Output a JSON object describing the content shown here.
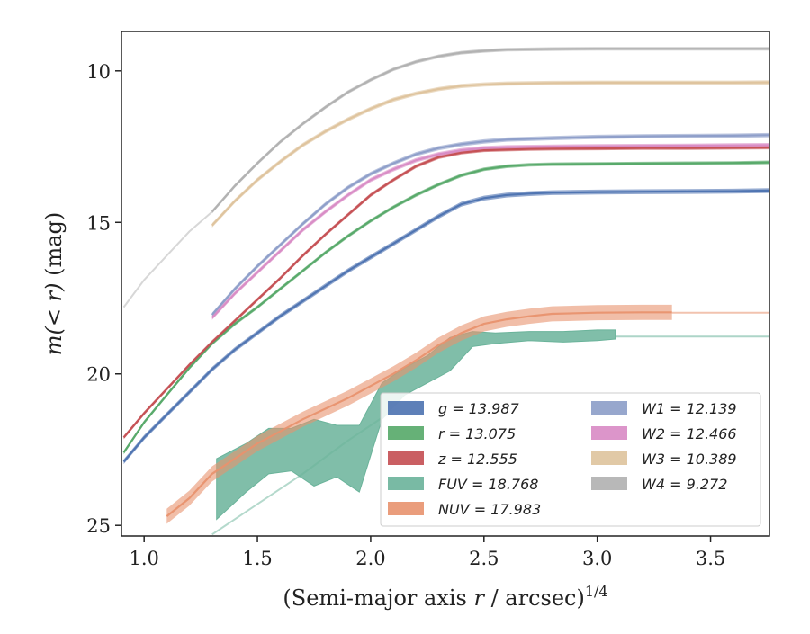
{
  "chart_data": {
    "type": "line",
    "xlabel": "(Semi-major axis r / arcsec)^1/4",
    "ylabel": "m(< r) (mag)",
    "xlim": [
      0.9,
      3.76
    ],
    "ylim": [
      25.35,
      8.7
    ],
    "y_inverted": true,
    "xticks": [
      "1.0",
      "1.5",
      "2.0",
      "2.5",
      "3.0",
      "3.5"
    ],
    "yticks": [
      "10",
      "15",
      "20",
      "25"
    ],
    "grid": false,
    "legend_position": "lower-right",
    "legend_columns": 2,
    "series": [
      {
        "name": "g = 13.987",
        "color": "#4c72b0",
        "band": 0.08,
        "x": [
          0.91,
          1.0,
          1.1,
          1.2,
          1.3,
          1.4,
          1.5,
          1.6,
          1.7,
          1.8,
          1.9,
          2.0,
          2.1,
          2.2,
          2.3,
          2.4,
          2.5,
          2.6,
          2.7,
          2.8,
          3.0,
          3.2,
          3.4,
          3.6,
          3.76
        ],
        "y": [
          22.9,
          22.1,
          21.35,
          20.6,
          19.85,
          19.2,
          18.65,
          18.1,
          17.6,
          17.1,
          16.6,
          16.15,
          15.7,
          15.25,
          14.8,
          14.4,
          14.2,
          14.1,
          14.05,
          14.02,
          14.0,
          13.99,
          13.98,
          13.97,
          13.95
        ]
      },
      {
        "name": "r = 13.075",
        "color": "#55a868",
        "band": 0.06,
        "x": [
          0.91,
          1.0,
          1.1,
          1.2,
          1.3,
          1.4,
          1.5,
          1.6,
          1.7,
          1.8,
          1.9,
          2.0,
          2.1,
          2.2,
          2.3,
          2.4,
          2.5,
          2.6,
          2.7,
          2.8,
          3.0,
          3.2,
          3.4,
          3.6,
          3.76
        ],
        "y": [
          22.6,
          21.6,
          20.7,
          19.8,
          19.0,
          18.35,
          17.8,
          17.2,
          16.6,
          16.0,
          15.45,
          14.95,
          14.5,
          14.1,
          13.75,
          13.45,
          13.25,
          13.15,
          13.1,
          13.08,
          13.07,
          13.06,
          13.05,
          13.04,
          13.02
        ]
      },
      {
        "name": "z = 12.555",
        "color": "#c44e52",
        "band": 0.06,
        "x": [
          0.91,
          1.0,
          1.1,
          1.2,
          1.3,
          1.4,
          1.5,
          1.6,
          1.7,
          1.8,
          1.9,
          2.0,
          2.1,
          2.2,
          2.3,
          2.4,
          2.5,
          2.6,
          2.7,
          2.8,
          3.0,
          3.2,
          3.4,
          3.6,
          3.76
        ],
        "y": [
          22.1,
          21.3,
          20.5,
          19.7,
          18.95,
          18.25,
          17.55,
          16.85,
          16.1,
          15.4,
          14.75,
          14.1,
          13.6,
          13.15,
          12.85,
          12.7,
          12.62,
          12.6,
          12.58,
          12.57,
          12.56,
          12.55,
          12.55,
          12.54,
          12.53
        ]
      },
      {
        "name": "FUV = 18.768",
        "color": "#6ab39a",
        "band": 0,
        "x": [
          1.32,
          1.45,
          1.55,
          1.65,
          1.75,
          1.85,
          1.95,
          2.05,
          2.15,
          2.25,
          2.35,
          2.45,
          2.55,
          2.7,
          2.85,
          3.0,
          3.08
        ],
        "y_low": [
          24.8,
          23.9,
          23.3,
          23.2,
          23.7,
          23.4,
          23.9,
          21.5,
          20.7,
          20.3,
          19.9,
          19.1,
          19.0,
          18.9,
          18.95,
          18.9,
          18.85
        ],
        "y_high": [
          22.8,
          22.3,
          21.8,
          21.8,
          21.5,
          21.7,
          21.7,
          20.3,
          19.8,
          19.4,
          18.8,
          18.6,
          18.65,
          18.6,
          18.6,
          18.55,
          18.55
        ],
        "extension_x": [
          3.08,
          3.76
        ],
        "extension_y": [
          18.77,
          18.77
        ],
        "faint_x": [
          1.3,
          1.5,
          1.7,
          1.9,
          2.1,
          2.2
        ],
        "faint_y": [
          25.3,
          24.3,
          23.3,
          22.2,
          21.2,
          20.9
        ]
      },
      {
        "name": "NUV = 17.983",
        "color": "#e8926e",
        "band": 0.25,
        "x": [
          1.1,
          1.2,
          1.3,
          1.4,
          1.5,
          1.6,
          1.7,
          1.8,
          1.9,
          2.0,
          2.1,
          2.2,
          2.3,
          2.4,
          2.5,
          2.6,
          2.7,
          2.8,
          3.0,
          3.2,
          3.33
        ],
        "y": [
          24.7,
          24.1,
          23.3,
          22.8,
          22.3,
          21.9,
          21.5,
          21.15,
          20.8,
          20.4,
          20.0,
          19.55,
          19.05,
          18.65,
          18.35,
          18.2,
          18.1,
          18.02,
          17.98,
          17.97,
          17.97
        ],
        "extension_x": [
          3.33,
          3.76
        ],
        "extension_y": [
          17.98,
          17.98
        ]
      },
      {
        "name": "W1 = 12.139",
        "color": "#8c9dc8",
        "band": 0.07,
        "x": [
          1.3,
          1.4,
          1.5,
          1.6,
          1.7,
          1.8,
          1.9,
          2.0,
          2.1,
          2.2,
          2.3,
          2.4,
          2.5,
          2.6,
          2.8,
          3.0,
          3.2,
          3.4,
          3.6,
          3.76
        ],
        "y": [
          18.05,
          17.2,
          16.45,
          15.75,
          15.05,
          14.4,
          13.85,
          13.4,
          13.05,
          12.75,
          12.55,
          12.42,
          12.33,
          12.27,
          12.22,
          12.18,
          12.16,
          12.15,
          12.14,
          12.12
        ]
      },
      {
        "name": "W2 = 12.466",
        "color": "#d88ac4",
        "band": 0.07,
        "x": [
          1.3,
          1.4,
          1.5,
          1.6,
          1.7,
          1.8,
          1.9,
          2.0,
          2.1,
          2.2,
          2.3,
          2.4,
          2.5,
          2.6,
          2.8,
          3.0,
          3.2,
          3.4,
          3.6,
          3.76
        ],
        "y": [
          18.15,
          17.35,
          16.65,
          15.95,
          15.25,
          14.65,
          14.1,
          13.6,
          13.25,
          12.95,
          12.75,
          12.62,
          12.55,
          12.52,
          12.5,
          12.49,
          12.48,
          12.47,
          12.46,
          12.45
        ]
      },
      {
        "name": "W3 = 10.389",
        "color": "#dec39c",
        "band": 0.07,
        "x": [
          1.3,
          1.4,
          1.5,
          1.6,
          1.7,
          1.8,
          1.9,
          2.0,
          2.1,
          2.2,
          2.3,
          2.4,
          2.5,
          2.6,
          2.8,
          3.0,
          3.2,
          3.4,
          3.6,
          3.76
        ],
        "y": [
          15.1,
          14.3,
          13.6,
          13.0,
          12.45,
          12.0,
          11.6,
          11.25,
          10.95,
          10.75,
          10.6,
          10.5,
          10.45,
          10.42,
          10.4,
          10.39,
          10.39,
          10.39,
          10.39,
          10.38
        ]
      },
      {
        "name": "W4 = 9.272",
        "color": "#b0b0b0",
        "band": 0.06,
        "x": [
          1.3,
          1.4,
          1.5,
          1.6,
          1.7,
          1.8,
          1.9,
          2.0,
          2.1,
          2.2,
          2.3,
          2.4,
          2.5,
          2.6,
          2.8,
          3.0,
          3.2,
          3.4,
          3.6,
          3.76
        ],
        "y": [
          14.65,
          13.8,
          13.05,
          12.35,
          11.75,
          11.2,
          10.7,
          10.3,
          9.95,
          9.7,
          9.52,
          9.4,
          9.34,
          9.3,
          9.28,
          9.27,
          9.27,
          9.27,
          9.27,
          9.27
        ],
        "faint_x": [
          0.91,
          1.0,
          1.1,
          1.2,
          1.3
        ],
        "faint_y": [
          17.8,
          16.9,
          16.1,
          15.3,
          14.65
        ]
      }
    ]
  }
}
